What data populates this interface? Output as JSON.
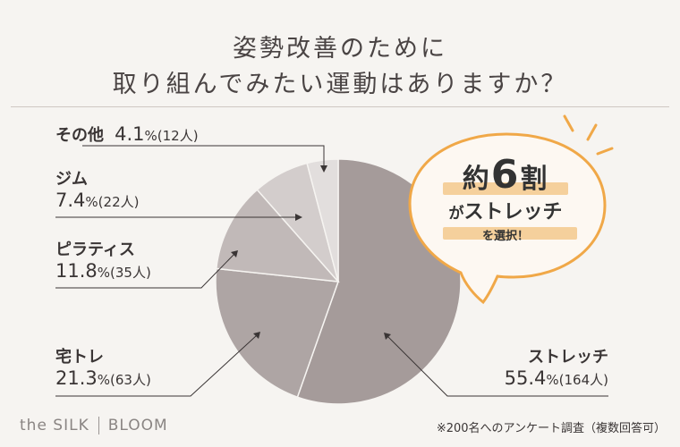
{
  "title_line1": "姿勢改善のために",
  "title_line2": "取り組んでみたい運動はありますか？",
  "chart_data": {
    "type": "pie",
    "slices": [
      {
        "name": "ストレッチ",
        "percent": 55.4,
        "count": "164人",
        "color": "#a59b9a"
      },
      {
        "name": "宅トレ",
        "percent": 21.3,
        "count": "63人",
        "color": "#aea5a4"
      },
      {
        "name": "ピラティス",
        "percent": 11.8,
        "count": "35人",
        "color": "#c1b9b8"
      },
      {
        "name": "ジム",
        "percent": 7.4,
        "count": "22人",
        "color": "#d3cdcc"
      },
      {
        "name": "その他",
        "percent": 4.1,
        "count": "12人",
        "color": "#e2dedd"
      }
    ]
  },
  "labels": {
    "other": {
      "name": "その他",
      "pct": "4.1",
      "pct_sym": "%",
      "count": "(12人)"
    },
    "gym": {
      "name": "ジム",
      "pct": "7.4",
      "pct_sym": "%",
      "count": "(22人)"
    },
    "pilates": {
      "name": "ピラティス",
      "pct": "11.8",
      "pct_sym": "%",
      "count": "(35人)"
    },
    "home": {
      "name": "宅トレ",
      "pct": "21.3",
      "pct_sym": "%",
      "count": "(63人)"
    },
    "stretch": {
      "name": "ストレッチ",
      "pct": "55.4",
      "pct_sym": "%",
      "count": "(164人)"
    }
  },
  "badge": {
    "line1_a": "約",
    "line1_b": "6",
    "line1_c": "割",
    "line2_a": "が",
    "line2_b": "ストレッチ",
    "line3": "を選択！"
  },
  "footer": {
    "brand_left": "the SILK",
    "brand_right": "BLOOM",
    "note": "※200名へのアンケート調査（複数回答可）"
  },
  "colors": {
    "background": "#f6f4f1",
    "badge_fill": "#fdf8f2",
    "badge_stroke": "#f0a848",
    "highlight": "#f3c98d"
  }
}
